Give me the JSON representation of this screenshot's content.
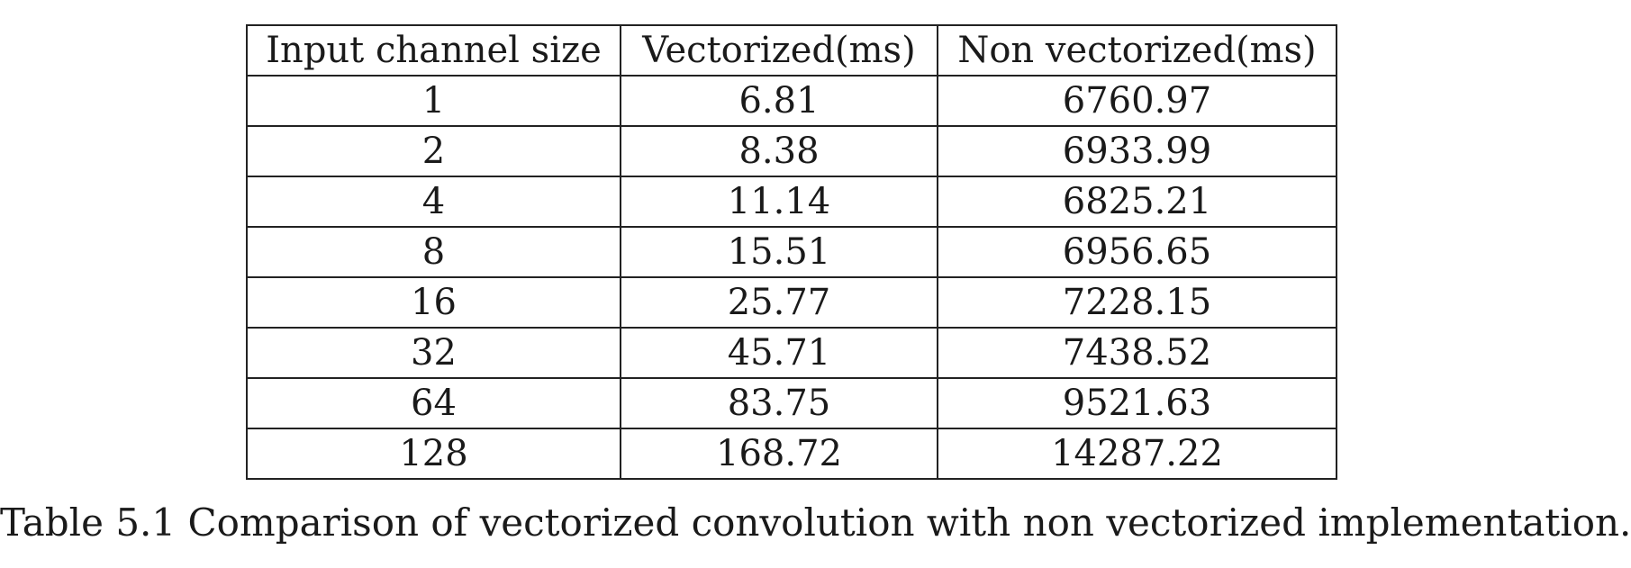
{
  "table": {
    "headers": [
      "Input channel size",
      "Vectorized(ms)",
      "Non vectorized(ms)"
    ],
    "rows": [
      [
        "1",
        "6.81",
        "6760.97"
      ],
      [
        "2",
        "8.38",
        "6933.99"
      ],
      [
        "4",
        "11.14",
        "6825.21"
      ],
      [
        "8",
        "15.51",
        "6956.65"
      ],
      [
        "16",
        "25.77",
        "7228.15"
      ],
      [
        "32",
        "45.71",
        "7438.52"
      ],
      [
        "64",
        "83.75",
        "9521.63"
      ],
      [
        "128",
        "168.72",
        "14287.22"
      ]
    ]
  },
  "caption": "Table 5.1 Comparison of vectorized convolution with non vectorized implementation."
}
